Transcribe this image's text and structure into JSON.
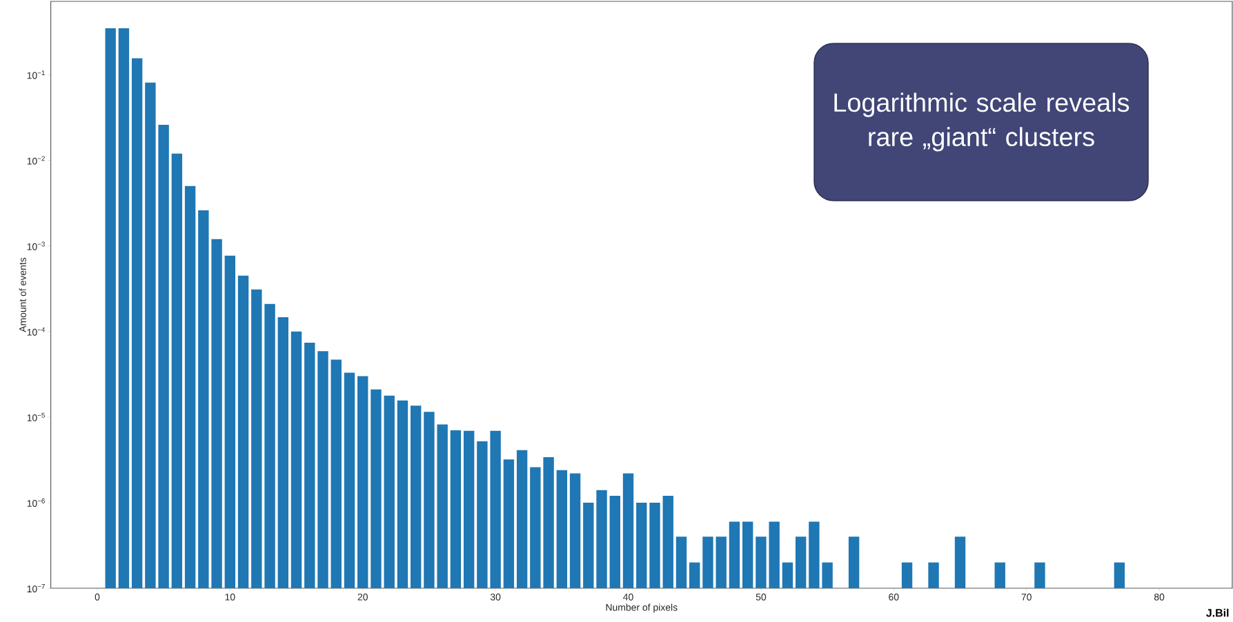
{
  "chart_data": {
    "type": "bar",
    "xlabel": "Number of pixels",
    "ylabel": "Amount of events",
    "log": "y",
    "grid": false,
    "x": [
      1,
      2,
      3,
      4,
      5,
      6,
      7,
      8,
      9,
      10,
      11,
      12,
      13,
      14,
      15,
      16,
      17,
      18,
      19,
      20,
      21,
      22,
      23,
      24,
      25,
      26,
      27,
      28,
      29,
      30,
      31,
      32,
      33,
      34,
      35,
      36,
      37,
      38,
      39,
      40,
      41,
      42,
      43,
      44,
      45,
      46,
      47,
      48,
      49,
      50,
      51,
      52,
      53,
      54,
      55,
      57,
      61,
      63,
      65,
      68,
      71,
      77
    ],
    "values": [
      0.35,
      0.35,
      0.156,
      0.081,
      0.026,
      0.012,
      0.005,
      0.0026,
      0.0012,
      0.00077,
      0.00045,
      0.00031,
      0.00021,
      0.000147,
      0.0001,
      7.4e-05,
      5.9e-05,
      4.7e-05,
      3.3e-05,
      3e-05,
      2.1e-05,
      1.78e-05,
      1.56e-05,
      1.36e-05,
      1.15e-05,
      8.2e-06,
      7e-06,
      6.9e-06,
      5.2e-06,
      6.9e-06,
      3.2e-06,
      4.1e-06,
      2.6e-06,
      3.4e-06,
      2.4e-06,
      2.2e-06,
      1e-06,
      1.4e-06,
      1.2e-06,
      2.2e-06,
      1e-06,
      1e-06,
      1.2e-06,
      4e-07,
      2e-07,
      4e-07,
      4e-07,
      6e-07,
      6e-07,
      4e-07,
      6e-07,
      2e-07,
      4e-07,
      6e-07,
      2e-07,
      4e-07,
      2e-07,
      2e-07,
      4e-07,
      2e-07,
      2e-07,
      2e-07
    ],
    "color": "#1f77b4",
    "xlim": [
      -3.5,
      85.5
    ],
    "ylim": [
      1e-07,
      0.72
    ],
    "xticks": [
      0,
      10,
      20,
      30,
      40,
      50,
      60,
      70,
      80
    ],
    "yticks": [
      {
        "value": 1e-07,
        "label": "10$^{−7}$"
      },
      {
        "value": 1e-06,
        "label": "10$^{−6}$"
      },
      {
        "value": 1e-05,
        "label": "10$^{−5}$"
      },
      {
        "value": 0.0001,
        "label": "10$^{−4}$"
      },
      {
        "value": 0.001,
        "label": "10$^{−3}$"
      },
      {
        "value": 0.01,
        "label": "10$^{−2}$"
      },
      {
        "value": 0.1,
        "label": "10$^{−1}$"
      }
    ],
    "annotations": [
      "Logarithmic scale reveals rare „giant“ clusters",
      "J.Bil"
    ]
  }
}
